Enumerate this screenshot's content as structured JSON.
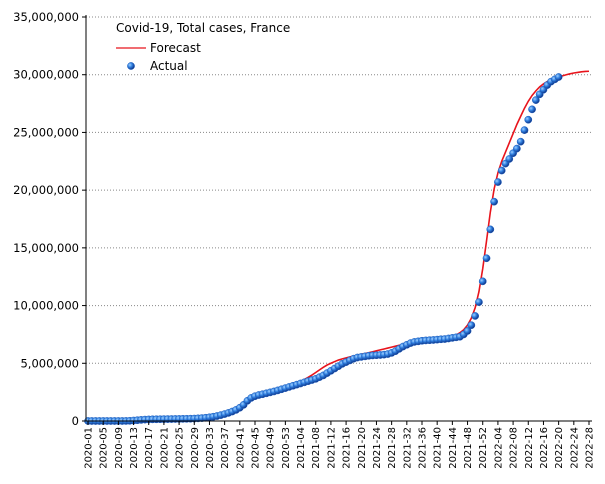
{
  "chart_data": {
    "type": "line",
    "legend_title": "Covid-19, Total cases, France",
    "legend_position": "upper left",
    "grid": true,
    "ylim": [
      0,
      35000000
    ],
    "yticks": [
      0,
      {
        "value": 5000000,
        "label": "5,000,000"
      },
      {
        "value": 10000000,
        "label": "10,000,000"
      },
      {
        "value": 15000000,
        "label": "15,000,000"
      },
      {
        "value": 20000000,
        "label": "20,000,000"
      },
      {
        "value": 25000000,
        "label": "25,000,000"
      },
      {
        "value": 30000000,
        "label": "30,000,000"
      },
      {
        "value": 35000000,
        "label": "35,000,000"
      }
    ],
    "categories": [
      "2020-01",
      null,
      null,
      null,
      "2020-05",
      null,
      null,
      null,
      "2020-09",
      null,
      null,
      null,
      "2020-13",
      null,
      null,
      null,
      "2020-17",
      null,
      null,
      null,
      "2020-21",
      null,
      null,
      null,
      "2020-25",
      null,
      null,
      null,
      "2020-29",
      null,
      null,
      null,
      "2020-33",
      null,
      null,
      null,
      "2020-37",
      null,
      null,
      null,
      "2020-41",
      null,
      null,
      null,
      "2020-45",
      null,
      null,
      null,
      "2020-49",
      null,
      null,
      null,
      "2020-53",
      null,
      null,
      null,
      "2021-04",
      null,
      null,
      null,
      "2021-08",
      null,
      null,
      null,
      "2021-12",
      null,
      null,
      null,
      "2021-16",
      null,
      null,
      null,
      "2021-20",
      null,
      null,
      null,
      "2021-24",
      null,
      null,
      null,
      "2021-28",
      null,
      null,
      null,
      "2021-32",
      null,
      null,
      null,
      "2021-36",
      null,
      null,
      null,
      "2021-40",
      null,
      null,
      null,
      "2021-44",
      null,
      null,
      null,
      "2021-48",
      null,
      null,
      null,
      "2021-52",
      null,
      null,
      null,
      "2022-04",
      null,
      null,
      null,
      "2022-08",
      null,
      null,
      null,
      "2022-12",
      null,
      null,
      null,
      "2022-16",
      null,
      null,
      null,
      "2022-20",
      null,
      null,
      null,
      "2022-24",
      null,
      null,
      null,
      "2022-28"
    ],
    "series": [
      {
        "name": "Forecast",
        "color": "#e8141c",
        "style": "line",
        "values": [
          150000,
          150000,
          150000,
          150000,
          150000,
          150000,
          150000,
          150000,
          150000,
          150000,
          150000,
          150000,
          150000,
          150000,
          150000,
          150000,
          150000,
          150000,
          150000,
          150000,
          170000,
          180000,
          190000,
          200000,
          210000,
          220000,
          230000,
          250000,
          270000,
          300000,
          330000,
          370000,
          420000,
          480000,
          560000,
          650000,
          750000,
          870000,
          1000000,
          1180000,
          1400000,
          1650000,
          1900000,
          2080000,
          2200000,
          2300000,
          2400000,
          2500000,
          2600000,
          2700000,
          2800000,
          2900000,
          3000000,
          3100000,
          3200000,
          3320000,
          3450000,
          3600000,
          3780000,
          3980000,
          4200000,
          4430000,
          4650000,
          4850000,
          5000000,
          5150000,
          5280000,
          5380000,
          5470000,
          5550000,
          5630000,
          5700000,
          5780000,
          5850000,
          5920000,
          6000000,
          6080000,
          6160000,
          6240000,
          6320000,
          6400000,
          6480000,
          6560000,
          6640000,
          6720000,
          6780000,
          6830000,
          6870000,
          6900000,
          6930000,
          6960000,
          6990000,
          7020000,
          7060000,
          7100000,
          7180000,
          7300000,
          7450000,
          7650000,
          7900000,
          8300000,
          8900000,
          9800000,
          11200000,
          13200000,
          15600000,
          18100000,
          20100000,
          21500000,
          22500000,
          23300000,
          24100000,
          24900000,
          25700000,
          26400000,
          27100000,
          27700000,
          28200000,
          28600000,
          28950000,
          29200000,
          29400000,
          29550000,
          29680000,
          29800000,
          29900000,
          30000000,
          30080000,
          30150000,
          30200000,
          30250000,
          30280000,
          30300000
        ]
      },
      {
        "name": "Actual",
        "color": "#1f5fbf",
        "style": "marker",
        "values": [
          0,
          0,
          0,
          0,
          0,
          0,
          0,
          0,
          100,
          1000,
          5000,
          15000,
          40000,
          70000,
          95000,
          120000,
          135000,
          145000,
          150000,
          155000,
          160000,
          165000,
          170000,
          175000,
          180000,
          185000,
          190000,
          200000,
          210000,
          230000,
          250000,
          280000,
          320000,
          370000,
          430000,
          510000,
          600000,
          700000,
          820000,
          960000,
          1150000,
          1400000,
          1750000,
          2000000,
          2150000,
          2250000,
          2320000,
          2400000,
          2480000,
          2560000,
          2650000,
          2750000,
          2850000,
          2950000,
          3050000,
          3150000,
          3250000,
          3350000,
          3450000,
          3550000,
          3650000,
          3800000,
          3950000,
          4150000,
          4350000,
          4550000,
          4750000,
          4950000,
          5100000,
          5250000,
          5400000,
          5500000,
          5550000,
          5600000,
          5650000,
          5680000,
          5700000,
          5720000,
          5750000,
          5800000,
          5900000,
          6050000,
          6250000,
          6450000,
          6600000,
          6750000,
          6850000,
          6900000,
          6950000,
          6980000,
          7000000,
          7020000,
          7050000,
          7080000,
          7100000,
          7150000,
          7200000,
          7250000,
          7300000,
          7500000,
          7800000,
          8300000,
          9100000,
          10300000,
          12100000,
          14100000,
          16600000,
          19000000,
          20700000,
          21700000,
          22300000,
          22700000,
          23200000,
          23600000,
          24200000,
          25200000,
          26100000,
          27000000,
          27800000,
          28300000,
          28700000,
          29100000,
          29400000,
          29600000,
          29800000,
          null,
          null,
          null,
          null,
          null,
          null,
          null,
          null
        ]
      }
    ]
  }
}
